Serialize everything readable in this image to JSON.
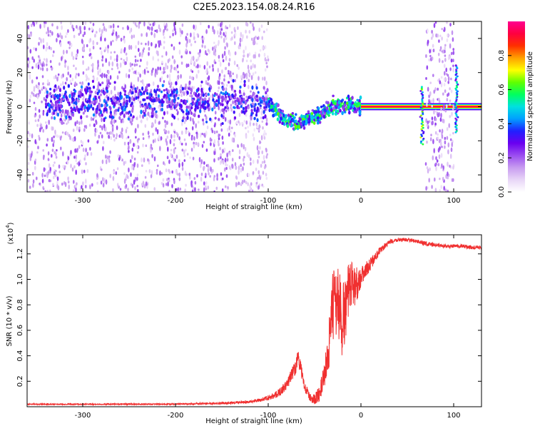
{
  "title": "C2E5.2023.154.08.24.R16",
  "colors": {
    "snr_line": "#f03030",
    "colormap": [
      "#ffffff",
      "#e8d6f7",
      "#c89cf0",
      "#9b4df0",
      "#6a00f0",
      "#2020ff",
      "#00a0ff",
      "#00e0e0",
      "#00ff60",
      "#60ff00",
      "#ffff00",
      "#ffa000",
      "#ff3000",
      "#ff0040",
      "#ff0090"
    ]
  },
  "chart_data": [
    {
      "type": "heatmap",
      "title": "C2E5.2023.154.08.24.R16",
      "xlabel": "Height of straight line (km)",
      "ylabel": "Frequency (Hz)",
      "xlim": [
        -360,
        130
      ],
      "ylim": [
        -50,
        50
      ],
      "x_ticks": [
        -300,
        -200,
        -100,
        0,
        100
      ],
      "x_tick_labels": [
        "-300",
        "-200",
        "-100",
        "0",
        "100"
      ],
      "y_ticks": [
        -40,
        -20,
        0,
        20,
        40
      ],
      "y_tick_labels": [
        "-40",
        "-20",
        "0",
        "20",
        "40"
      ],
      "colorbar": {
        "label": "Normalized spectral amplitude",
        "range": [
          0,
          1
        ],
        "ticks": [
          0.0,
          0.2,
          0.4,
          0.6,
          0.8
        ],
        "tick_labels": [
          "0.0",
          "0.2",
          "0.4",
          "0.6",
          "0.8"
        ]
      },
      "features": [
        {
          "name": "noise",
          "x": [
            -360,
            -100
          ],
          "freq_spread": 50,
          "amplitude": 0.2
        },
        {
          "name": "band",
          "x": [
            -340,
            -100
          ],
          "freq_center": 3,
          "freq_width": 5,
          "amplitude": 0.3
        },
        {
          "name": "descending branch",
          "points": [
            [
              -100,
              3
            ],
            [
              -90,
              -3
            ],
            [
              -80,
              -8
            ],
            [
              -70,
              -10
            ],
            [
              -60,
              -8
            ],
            [
              -50,
              -6
            ],
            [
              -40,
              -3
            ],
            [
              -30,
              0
            ],
            [
              -20,
              1
            ],
            [
              -10,
              1
            ],
            [
              0,
              0
            ]
          ],
          "amplitude": 0.5
        },
        {
          "name": "carrier",
          "x": [
            0,
            130
          ],
          "freq_center": 0,
          "amplitude": 0.95
        },
        {
          "name": "noise",
          "x": [
            70,
            100
          ],
          "freq_spread": 50,
          "amplitude": 0.2
        },
        {
          "name": "spike",
          "x": 66,
          "freq_range": [
            -22,
            12
          ],
          "amplitude": 0.5
        },
        {
          "name": "spike",
          "x": 103,
          "freq_range": [
            -15,
            25
          ],
          "amplitude": 0.4
        }
      ]
    },
    {
      "type": "line",
      "xlabel": "Height of straight line (km)",
      "ylabel": "SNR (10 * v/v)",
      "y_multiplier_label": "(x10",
      "y_multiplier_exp": "4",
      "y_multiplier_close": ")",
      "xlim": [
        -360,
        130
      ],
      "ylim": [
        0,
        1.35
      ],
      "x_ticks": [
        -300,
        -200,
        -100,
        0,
        100
      ],
      "x_tick_labels": [
        "-300",
        "-200",
        "-100",
        "0",
        "100"
      ],
      "y_ticks": [
        0.2,
        0.4,
        0.6,
        0.8,
        1.0,
        1.2
      ],
      "y_tick_labels": [
        "0.2",
        "0.4",
        "0.6",
        "0.8",
        "1.0",
        "1.2"
      ],
      "series": [
        {
          "x": [
            -360,
            -300,
            -200,
            -140,
            -120,
            -110,
            -100,
            -90,
            -80,
            -75,
            -70,
            -68,
            -65,
            -62,
            -60,
            -55,
            -50,
            -45,
            -40,
            -35,
            -32,
            -30,
            -25,
            -20,
            -15,
            -10,
            -5,
            0,
            10,
            20,
            30,
            40,
            50,
            60,
            70,
            80,
            90,
            100,
            110,
            120,
            130
          ],
          "y": [
            0.02,
            0.02,
            0.02,
            0.03,
            0.04,
            0.05,
            0.07,
            0.1,
            0.17,
            0.25,
            0.32,
            0.4,
            0.3,
            0.2,
            0.15,
            0.07,
            0.06,
            0.1,
            0.22,
            0.45,
            0.65,
            0.8,
            0.85,
            0.65,
            0.85,
            0.95,
            0.96,
            1.02,
            1.12,
            1.22,
            1.29,
            1.31,
            1.31,
            1.3,
            1.28,
            1.27,
            1.26,
            1.26,
            1.26,
            1.25,
            1.25
          ],
          "noise": [
            0.005,
            0.005,
            0.005,
            0.01,
            0.01,
            0.015,
            0.02,
            0.03,
            0.04,
            0.05,
            0.06,
            0.06,
            0.06,
            0.05,
            0.04,
            0.03,
            0.04,
            0.06,
            0.1,
            0.18,
            0.25,
            0.3,
            0.3,
            0.3,
            0.25,
            0.2,
            0.15,
            0.08,
            0.05,
            0.03,
            0.02,
            0.015,
            0.015,
            0.015,
            0.02,
            0.015,
            0.015,
            0.015,
            0.015,
            0.015,
            0.015
          ]
        }
      ]
    }
  ]
}
